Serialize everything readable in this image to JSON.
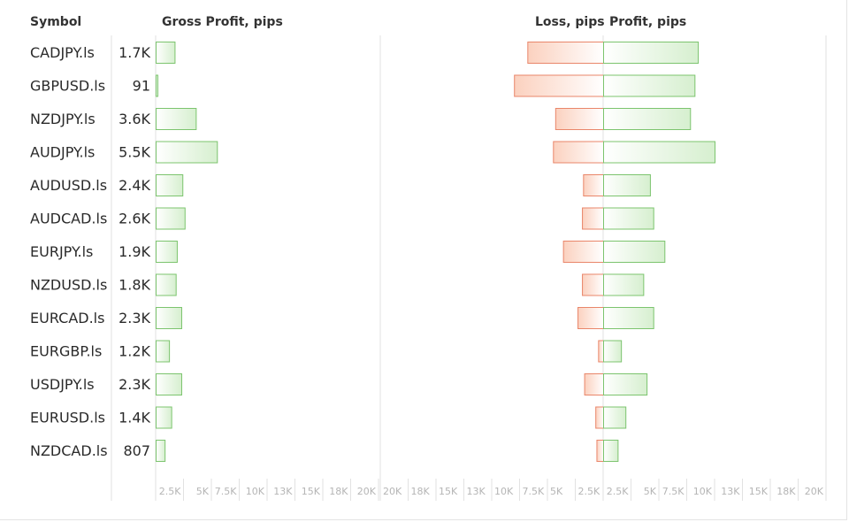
{
  "headers": {
    "symbol": "Symbol",
    "gross_profit": "Gross Profit, pips",
    "loss": "Loss, pips",
    "profit": "Profit, pips"
  },
  "colors": {
    "green_fill_start": "#ffffff",
    "green_fill_end": "#d6efcf",
    "green_stroke": "#7cc46e",
    "red_fill_start": "#fbd1bf",
    "red_fill_end": "#ffffff",
    "red_stroke": "#e9866a",
    "grid": "#e2e2e2",
    "tick_text": "#b5b5b5"
  },
  "chart_data": [
    {
      "type": "bar",
      "orientation": "horizontal",
      "title": "Gross Profit, pips",
      "categories": [
        "CADJPY.ls",
        "GBPUSD.ls",
        "NZDJPY.ls",
        "AUDJPY.ls",
        "AUDUSD.ls",
        "AUDCAD.ls",
        "EURJPY.ls",
        "NZDUSD.ls",
        "EURCAD.ls",
        "EURGBP.ls",
        "USDJPY.ls",
        "EURUSD.ls",
        "NZDCAD.ls"
      ],
      "values": [
        1700,
        91,
        3600,
        5500,
        2400,
        2600,
        1900,
        1800,
        2300,
        1200,
        2300,
        1400,
        807
      ],
      "value_labels": [
        "1.7K",
        "91",
        "3.6K",
        "5.5K",
        "2.4K",
        "2.6K",
        "1.9K",
        "1.8K",
        "2.3K",
        "1.2K",
        "2.3K",
        "1.4K",
        "807"
      ],
      "xlim": [
        0,
        20000
      ],
      "ticks": [
        "2.5K",
        "5K",
        "7.5K",
        "10K",
        "13K",
        "15K",
        "18K",
        "20K"
      ],
      "grid": true
    },
    {
      "type": "bar",
      "orientation": "horizontal",
      "subtype": "diverging",
      "categories": [
        "CADJPY.ls",
        "GBPUSD.ls",
        "NZDJPY.ls",
        "AUDJPY.ls",
        "AUDUSD.ls",
        "AUDCAD.ls",
        "EURJPY.ls",
        "NZDUSD.ls",
        "EURCAD.ls",
        "EURGBP.ls",
        "USDJPY.ls",
        "EURUSD.ls",
        "NZDCAD.ls"
      ],
      "series": [
        {
          "name": "Loss, pips",
          "values": [
            -6800,
            -8000,
            -4300,
            -4500,
            -1800,
            -1900,
            -3600,
            -1900,
            -2300,
            -450,
            -1700,
            -700,
            -600
          ]
        },
        {
          "name": "Profit, pips",
          "values": [
            8500,
            8200,
            7800,
            10000,
            4200,
            4500,
            5500,
            3600,
            4500,
            1600,
            3900,
            2000,
            1300
          ]
        }
      ],
      "xlim": [
        -20000,
        20000
      ],
      "left_ticks": [
        "20K",
        "18K",
        "15K",
        "13K",
        "10K",
        "7.5K",
        "5K",
        "2.5K"
      ],
      "right_ticks": [
        "2.5K",
        "5K",
        "7.5K",
        "10K",
        "13K",
        "15K",
        "18K",
        "20K"
      ],
      "grid": true
    }
  ]
}
